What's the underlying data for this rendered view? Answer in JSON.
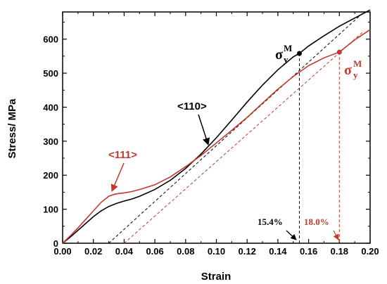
{
  "chart_data": {
    "type": "line",
    "xlabel": "Strain",
    "ylabel": "Stress/ MPa",
    "xlim": [
      0,
      0.2
    ],
    "ylim": [
      0,
      680
    ],
    "xticks": [
      "0.00",
      "0.02",
      "0.04",
      "0.06",
      "0.08",
      "0.10",
      "0.12",
      "0.14",
      "0.16",
      "0.18",
      "0.20"
    ],
    "yticks": [
      "0",
      "100",
      "200",
      "300",
      "400",
      "500",
      "600"
    ],
    "xtick_values": [
      0,
      0.02,
      0.04,
      0.06,
      0.08,
      0.1,
      0.12,
      0.14,
      0.16,
      0.18,
      0.2
    ],
    "ytick_values": [
      0,
      100,
      200,
      300,
      400,
      500,
      600
    ],
    "grid": false,
    "series": [
      {
        "name": "<110>",
        "color": "#000000",
        "x": [
          0,
          0.005,
          0.01,
          0.015,
          0.02,
          0.025,
          0.03,
          0.035,
          0.04,
          0.045,
          0.05,
          0.06,
          0.07,
          0.08,
          0.09,
          0.1,
          0.11,
          0.12,
          0.13,
          0.14,
          0.15,
          0.154,
          0.16,
          0.17,
          0.18,
          0.19,
          0.2
        ],
        "y": [
          0,
          18,
          38,
          58,
          78,
          95,
          108,
          117,
          124,
          130,
          138,
          158,
          185,
          220,
          262,
          310,
          362,
          415,
          465,
          510,
          548,
          558,
          580,
          610,
          638,
          662,
          686
        ]
      },
      {
        "name": "<111>",
        "color": "#c0392b",
        "x": [
          0,
          0.005,
          0.01,
          0.015,
          0.02,
          0.025,
          0.03,
          0.033,
          0.036,
          0.04,
          0.045,
          0.05,
          0.06,
          0.07,
          0.08,
          0.09,
          0.1,
          0.11,
          0.12,
          0.13,
          0.14,
          0.15,
          0.16,
          0.17,
          0.18,
          0.19,
          0.2
        ],
        "y": [
          0,
          22,
          45,
          70,
          95,
          120,
          138,
          143,
          146,
          148,
          152,
          158,
          172,
          195,
          225,
          258,
          295,
          332,
          370,
          412,
          453,
          490,
          522,
          545,
          562,
          598,
          628
        ]
      }
    ],
    "offset_lines": [
      {
        "color": "#000000",
        "x_start": 0.03,
        "x_end": 0.196,
        "slope": 4120
      },
      {
        "color": "#c0392b",
        "x_start": 0.04,
        "x_end": 0.196,
        "slope": 4000
      }
    ],
    "yield_points": [
      {
        "color": "#000000",
        "x": 0.154,
        "y": 558
      },
      {
        "color": "#c0392b",
        "x": 0.18,
        "y": 562
      }
    ],
    "annotations": {
      "label_110": "<110>",
      "label_111": "<111>",
      "strain_154": "15.4%",
      "strain_180": "18.0%",
      "sigma_symbol": "σ",
      "sigma_sup": "M",
      "sigma_sub": "y"
    }
  }
}
